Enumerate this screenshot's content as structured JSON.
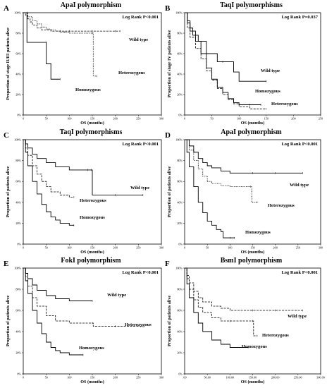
{
  "chart_data": [
    {
      "panel": "A",
      "type": "line",
      "title": "ApaI polymorphism",
      "annotation": "Log Rank P<0.001",
      "xlabel": "OS (months)",
      "ylabel": "Proportion of stage II/III patients alive",
      "xticks": [
        "0",
        "50",
        "100",
        "150",
        "200",
        "250",
        "300"
      ],
      "yticks": [
        "0%",
        "20%",
        "40%",
        "60%",
        "80%",
        "100%"
      ],
      "xlim": [
        0,
        300
      ],
      "ylim": [
        0,
        100
      ],
      "series": [
        {
          "name": "Wild type",
          "style": "dashed",
          "x": [
            0,
            5,
            10,
            15,
            20,
            30,
            40,
            60,
            80,
            100,
            150,
            200,
            210
          ],
          "y": [
            100,
            97,
            94,
            91,
            88,
            85,
            83,
            82,
            82,
            82,
            82,
            82,
            82
          ]
        },
        {
          "name": "Heterozygous",
          "style": "dotted",
          "x": [
            0,
            10,
            20,
            30,
            40,
            50,
            60,
            70,
            80,
            90,
            100,
            150,
            152,
            160
          ],
          "y": [
            100,
            96,
            92,
            89,
            86,
            84,
            83,
            82,
            81,
            81,
            80,
            80,
            38,
            38
          ]
        },
        {
          "name": "Homozygous",
          "style": "solid",
          "x": [
            0,
            8,
            8,
            50,
            50,
            60,
            60,
            80
          ],
          "y": [
            100,
            100,
            71,
            71,
            50,
            50,
            35,
            35
          ]
        }
      ]
    },
    {
      "panel": "B",
      "type": "line",
      "title": "TaqI polymorphisms",
      "annotation": "Log Rank P=0.037",
      "xlabel": "OS (months)",
      "ylabel": "Proportion of stage IV patients alive",
      "xticks": [
        "0",
        "50",
        "100",
        "150",
        "200",
        "250"
      ],
      "yticks": [
        "0%",
        "20%",
        "40%",
        "60%",
        "80%",
        "100%"
      ],
      "xlim": [
        0,
        250
      ],
      "ylim": [
        0,
        100
      ],
      "series": [
        {
          "name": "Wild type",
          "style": "solid",
          "x": [
            0,
            5,
            10,
            15,
            25,
            40,
            60,
            70,
            90,
            100,
            150
          ],
          "y": [
            100,
            92,
            85,
            78,
            72,
            60,
            52,
            52,
            42,
            33,
            33
          ]
        },
        {
          "name": "Homozygous",
          "style": "solid",
          "x": [
            0,
            5,
            10,
            20,
            30,
            40,
            50,
            60,
            70,
            80,
            90,
            100,
            120,
            140
          ],
          "y": [
            100,
            90,
            82,
            72,
            60,
            46,
            35,
            27,
            22,
            16,
            12,
            10,
            10,
            10
          ]
        },
        {
          "name": "Heterozygous",
          "style": "dashed",
          "x": [
            0,
            5,
            10,
            20,
            30,
            40,
            50,
            60,
            70,
            80,
            90,
            100,
            120,
            150
          ],
          "y": [
            100,
            85,
            76,
            65,
            55,
            43,
            34,
            26,
            20,
            15,
            11,
            8,
            6,
            6
          ]
        }
      ]
    },
    {
      "panel": "C",
      "type": "line",
      "title": "TaqI polymorphisms",
      "annotation": "Log Rank P<0.001",
      "xlabel": "OS (months)",
      "ylabel": "Proportion of patients alive",
      "xticks": [
        "0",
        "50",
        "100",
        "150",
        "200",
        "250",
        "300"
      ],
      "yticks": [
        "0%",
        "20%",
        "40%",
        "60%",
        "80%",
        "100%"
      ],
      "xlim": [
        0,
        300
      ],
      "ylim": [
        0,
        100
      ],
      "series": [
        {
          "name": "Wild type",
          "style": "solid",
          "x": [
            0,
            5,
            10,
            20,
            30,
            50,
            70,
            100,
            140,
            148,
            150,
            200,
            260
          ],
          "y": [
            100,
            96,
            92,
            86,
            82,
            78,
            74,
            71,
            71,
            71,
            47,
            47,
            47
          ]
        },
        {
          "name": "Heterozygous",
          "style": "dashed",
          "x": [
            0,
            5,
            10,
            20,
            30,
            40,
            50,
            60,
            80,
            100,
            110
          ],
          "y": [
            100,
            92,
            85,
            75,
            67,
            60,
            55,
            50,
            47,
            45,
            45
          ]
        },
        {
          "name": "Homozygous",
          "style": "solid",
          "x": [
            0,
            5,
            10,
            20,
            30,
            40,
            50,
            60,
            70,
            80,
            100,
            110
          ],
          "y": [
            100,
            88,
            75,
            60,
            48,
            38,
            31,
            26,
            23,
            20,
            18,
            18
          ]
        }
      ]
    },
    {
      "panel": "D",
      "type": "line",
      "title": "ApaI polymorphism",
      "annotation": "Log Rank P<0.001",
      "xlabel": "OS (months)",
      "ylabel": "Proportion of patients alive",
      "xticks": [
        "0",
        "50",
        "100",
        "150",
        "200",
        "250",
        "300"
      ],
      "yticks": [
        "0%",
        "20%",
        "40%",
        "60%",
        "80%",
        "100%"
      ],
      "xlim": [
        0,
        300
      ],
      "ylim": [
        0,
        100
      ],
      "series": [
        {
          "name": "Wild type",
          "style": "solid",
          "x": [
            0,
            10,
            20,
            30,
            40,
            50,
            60,
            80,
            100,
            150,
            200,
            260
          ],
          "y": [
            100,
            94,
            88,
            82,
            78,
            75,
            73,
            70,
            68,
            68,
            68,
            68
          ]
        },
        {
          "name": "Heterozygous",
          "style": "dotted",
          "x": [
            0,
            10,
            20,
            30,
            40,
            50,
            60,
            80,
            100,
            145,
            148,
            160
          ],
          "y": [
            100,
            90,
            80,
            72,
            65,
            60,
            58,
            56,
            55,
            55,
            40,
            40
          ]
        },
        {
          "name": "Homozygous",
          "style": "solid",
          "x": [
            0,
            5,
            10,
            20,
            30,
            40,
            50,
            60,
            70,
            80,
            85,
            100,
            110
          ],
          "y": [
            100,
            88,
            74,
            55,
            40,
            30,
            22,
            18,
            14,
            12,
            6,
            6,
            6
          ]
        }
      ]
    },
    {
      "panel": "E",
      "type": "line",
      "title": "FokI polymorphism",
      "annotation": "Log Rank P<0.001",
      "xlabel": "OS (months)",
      "ylabel": "Proportion of patients alive",
      "xticks": [
        "0",
        "50",
        "100",
        "150",
        "200",
        "250",
        "300"
      ],
      "yticks": [
        "0%",
        "20%",
        "40%",
        "60%",
        "80%",
        "100%"
      ],
      "xlim": [
        0,
        300
      ],
      "ylim": [
        0,
        100
      ],
      "series": [
        {
          "name": "Wild type",
          "style": "solid",
          "x": [
            0,
            5,
            10,
            20,
            30,
            50,
            70,
            100,
            150
          ],
          "y": [
            100,
            95,
            90,
            84,
            79,
            74,
            71,
            69,
            69
          ]
        },
        {
          "name": "Heterozygous",
          "style": "dashed",
          "x": [
            0,
            5,
            10,
            20,
            30,
            50,
            70,
            100,
            150,
            152,
            200,
            260
          ],
          "y": [
            100,
            92,
            83,
            72,
            64,
            55,
            50,
            48,
            48,
            45,
            45,
            45
          ]
        },
        {
          "name": "Homozygous",
          "style": "solid",
          "x": [
            0,
            5,
            10,
            20,
            30,
            40,
            50,
            60,
            70,
            80,
            100,
            130
          ],
          "y": [
            100,
            88,
            76,
            60,
            48,
            38,
            30,
            25,
            22,
            20,
            18,
            18
          ]
        }
      ]
    },
    {
      "panel": "F",
      "type": "line",
      "title": "BsmI polymorphism",
      "annotation": "Log Rank P<0.001",
      "xlabel": "OS (months)",
      "ylabel": "Proportion of patients alive",
      "xticks": [
        ".00",
        "50.00",
        "100.00",
        "150.00",
        "200.00",
        "250.00",
        "300.00"
      ],
      "yticks": [
        "0%",
        "20%",
        "40%",
        "60%",
        "80%",
        "100%"
      ],
      "xlim": [
        0,
        300
      ],
      "ylim": [
        0,
        100
      ],
      "series": [
        {
          "name": "Wild type",
          "style": "dashed",
          "x": [
            0,
            5,
            10,
            20,
            30,
            40,
            60,
            80,
            100,
            150,
            200,
            260
          ],
          "y": [
            100,
            93,
            86,
            78,
            72,
            68,
            64,
            62,
            60,
            60,
            60,
            60
          ]
        },
        {
          "name": "Heterozygous",
          "style": "dashed",
          "x": [
            0,
            5,
            10,
            20,
            30,
            40,
            60,
            80,
            100,
            150,
            152,
            160
          ],
          "y": [
            100,
            90,
            80,
            70,
            63,
            58,
            53,
            50,
            50,
            50,
            36,
            36
          ]
        },
        {
          "name": "Homozygous",
          "style": "solid",
          "x": [
            0,
            5,
            10,
            20,
            30,
            40,
            60,
            80,
            100,
            140
          ],
          "y": [
            100,
            85,
            72,
            58,
            48,
            40,
            32,
            28,
            25,
            25
          ]
        }
      ]
    }
  ]
}
